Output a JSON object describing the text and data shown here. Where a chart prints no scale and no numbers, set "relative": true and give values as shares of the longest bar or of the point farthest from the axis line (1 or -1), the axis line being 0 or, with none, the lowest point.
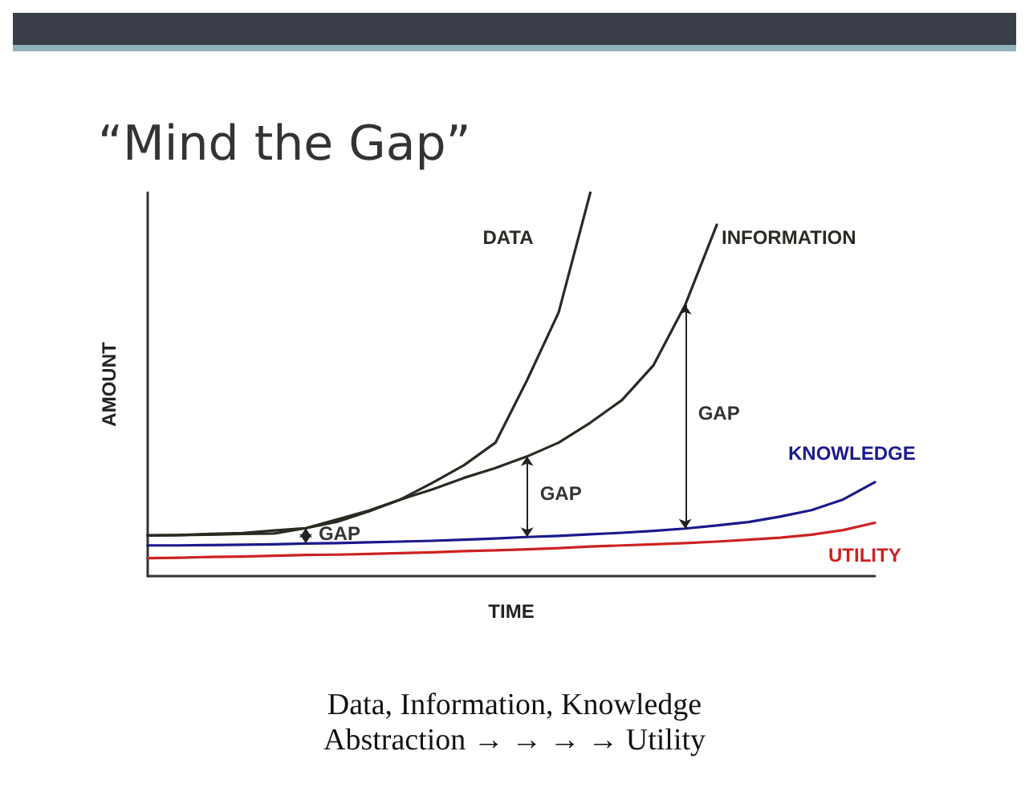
{
  "chart_data": {
    "type": "line",
    "title": "“Mind the Gap”",
    "xlabel": "TIME",
    "ylabel": "AMOUNT",
    "relative": true,
    "grid": false,
    "legend": false,
    "marker": "none",
    "line_style": "solid",
    "categories": [
      null,
      null,
      null,
      null,
      null,
      null,
      null,
      null,
      null,
      null,
      null,
      null,
      null,
      null,
      null,
      null,
      null,
      null,
      null,
      null,
      null,
      null,
      null,
      null
    ],
    "series": [
      {
        "name": "DATA",
        "color": "#2a2a22",
        "values": [
          0.106,
          0.107,
          0.11,
          0.112,
          0.119,
          0.125,
          0.142,
          0.169,
          0.2,
          0.243,
          0.289,
          0.348,
          0.511,
          0.688,
          1.0,
          null,
          null,
          null,
          null,
          null,
          null,
          null,
          null,
          null
        ]
      },
      {
        "name": "INFORMATION",
        "color": "#2a2a22",
        "values": [
          0.106,
          0.107,
          0.108,
          0.11,
          0.111,
          0.125,
          0.148,
          0.171,
          0.2,
          0.226,
          0.256,
          0.282,
          0.312,
          0.348,
          0.4,
          0.459,
          0.55,
          0.707,
          0.916,
          null,
          null,
          null,
          null,
          null
        ]
      },
      {
        "name": "KNOWLEDGE",
        "color": "#1a1a8c",
        "values": [
          0.08,
          0.08,
          0.081,
          0.082,
          0.083,
          0.085,
          0.086,
          0.088,
          0.09,
          0.092,
          0.095,
          0.098,
          0.102,
          0.105,
          0.109,
          0.113,
          0.118,
          0.124,
          0.132,
          0.141,
          0.155,
          0.172,
          0.2,
          0.245
        ]
      },
      {
        "name": "UTILITY",
        "color": "#cc2222",
        "values": [
          0.047,
          0.048,
          0.05,
          0.051,
          0.053,
          0.055,
          0.056,
          0.058,
          0.06,
          0.062,
          0.065,
          0.067,
          0.07,
          0.073,
          0.077,
          0.08,
          0.083,
          0.086,
          0.09,
          0.095,
          0.1,
          0.108,
          0.12,
          0.139
        ]
      }
    ],
    "annotations": [
      "GAP",
      "GAP",
      "GAP",
      "Data, Information, Knowledge",
      "Abstraction → → → → Utility"
    ]
  }
}
